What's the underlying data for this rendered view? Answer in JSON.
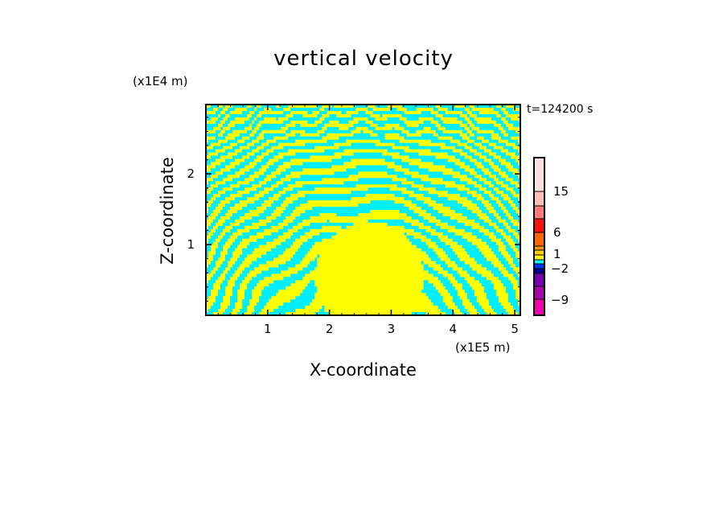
{
  "chart_data": {
    "type": "heatmap",
    "title": "vertical velocity",
    "xlabel": "X-coordinate",
    "ylabel": "Z-coordinate",
    "x_unit_label": "(x1E5 m)",
    "y_unit_label": "(x1E4 m)",
    "time_label": "t=124200 s",
    "xlim": [
      0,
      5.09
    ],
    "ylim": [
      0,
      2.98
    ],
    "x_ticks": [
      1,
      2,
      3,
      4,
      5
    ],
    "x_tick_labels": [
      "1",
      "2",
      "3",
      "4",
      "5"
    ],
    "y_ticks": [
      1,
      2
    ],
    "y_tick_labels": [
      "1",
      "2"
    ],
    "field_colors": {
      "positive": "#ffff00",
      "negative": "#00eeff"
    },
    "colorbar": {
      "levels": [
        {
          "color": "#ee00aa"
        },
        {
          "color": "#aa00aa"
        },
        {
          "color": "#7700aa"
        },
        {
          "color": "#000099"
        },
        {
          "color": "#0033ff"
        },
        {
          "color": "#00ffff"
        },
        {
          "color": "#ffff00"
        },
        {
          "color": "#ffcc00"
        },
        {
          "color": "#ff9900"
        },
        {
          "color": "#ff6600"
        },
        {
          "color": "#ff1010"
        },
        {
          "color": "#ff7a7a"
        },
        {
          "color": "#ffbcbc"
        },
        {
          "color": "#ffe0e0"
        }
      ],
      "tick_labels": [
        "15",
        "6",
        "1",
        "−2",
        "−9"
      ]
    }
  }
}
